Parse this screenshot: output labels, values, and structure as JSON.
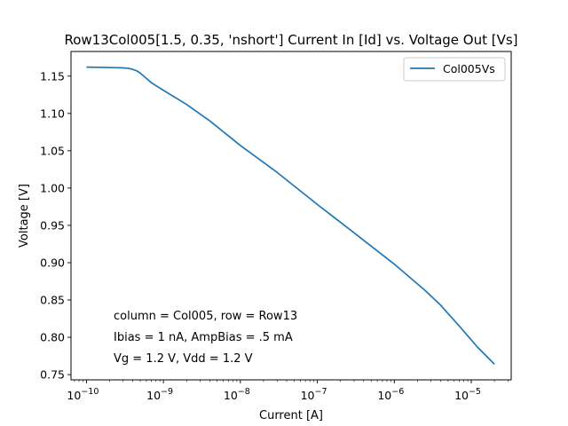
{
  "chart_data": {
    "type": "line",
    "title": "Row13Col005[1.5, 0.35, 'nshort'] Current In [Id] vs. Voltage Out [Vs]",
    "xlabel": "Current [A]",
    "ylabel": "Voltage [V]",
    "x_scale": "log",
    "xlim": [
      6.3e-11,
      3.3e-05
    ],
    "ylim": [
      0.743,
      1.183
    ],
    "x_ticks": [
      1e-10,
      1e-09,
      1e-08,
      1e-07,
      1e-06,
      1e-05
    ],
    "x_tick_labels": [
      "10",
      "10",
      "10",
      "10",
      "10",
      "10"
    ],
    "x_tick_exponents": [
      "−10",
      "−9",
      "−8",
      "−7",
      "−6",
      "−5"
    ],
    "y_ticks": [
      0.75,
      0.8,
      0.85,
      0.9,
      0.95,
      1.0,
      1.05,
      1.1,
      1.15
    ],
    "y_tick_labels": [
      "0.75",
      "0.80",
      "0.85",
      "0.90",
      "0.95",
      "1.00",
      "1.05",
      "1.10",
      "1.15"
    ],
    "grid": false,
    "legend_position": "top-right",
    "series": [
      {
        "name": "Col005Vs",
        "color": "#1f77b4",
        "x": [
          1e-10,
          2e-10,
          3e-10,
          3.5e-10,
          4e-10,
          4.5e-10,
          5e-10,
          6e-10,
          7e-10,
          1e-09,
          2e-09,
          4e-09,
          1e-08,
          3e-08,
          1e-07,
          3e-07,
          1e-06,
          2.5e-06,
          4e-06,
          7e-06,
          1.2e-05,
          2e-05
        ],
        "y": [
          1.162,
          1.1615,
          1.161,
          1.1605,
          1.159,
          1.157,
          1.154,
          1.147,
          1.141,
          1.131,
          1.112,
          1.09,
          1.057,
          1.021,
          0.978,
          0.94,
          0.898,
          0.863,
          0.843,
          0.815,
          0.787,
          0.764
        ]
      }
    ],
    "annotations": [
      "column = Col005, row = Row13",
      "Ibias = 1 nA, AmpBias = .5 mA",
      "Vg = 1.2 V, Vdd = 1.2 V"
    ]
  }
}
